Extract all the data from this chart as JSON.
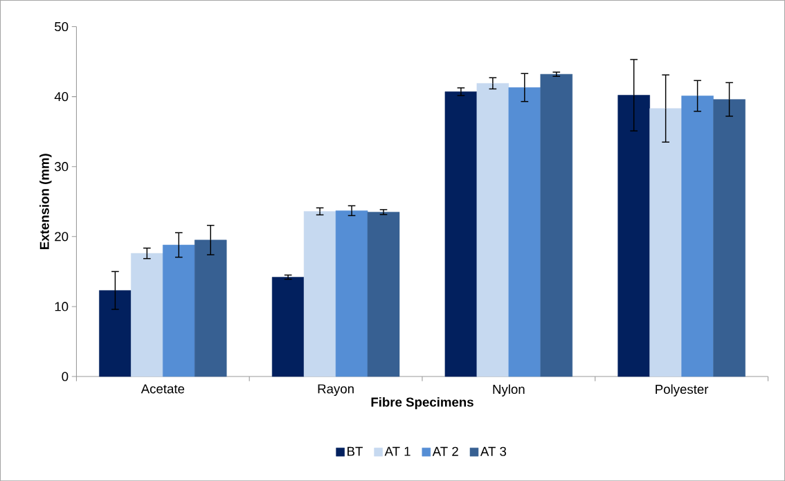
{
  "chart_data": {
    "type": "bar",
    "xlabel": "Fibre Specimens",
    "ylabel": "Extension (mm)",
    "categories": [
      "Acetate",
      "Rayon",
      "Nylon",
      "Polyester"
    ],
    "series": [
      {
        "name": "BT",
        "color": "#02205e",
        "values": [
          12.3,
          14.2,
          40.7,
          40.2
        ],
        "errors": [
          2.7,
          0.3,
          0.55,
          5.1
        ]
      },
      {
        "name": "AT 1",
        "color": "#c6d9f0",
        "values": [
          17.6,
          23.6,
          41.9,
          38.3
        ],
        "errors": [
          0.75,
          0.5,
          0.8,
          4.8
        ]
      },
      {
        "name": "AT 2",
        "color": "#558ed5",
        "values": [
          18.8,
          23.7,
          41.3,
          40.1
        ],
        "errors": [
          1.75,
          0.7,
          2.0,
          2.2
        ]
      },
      {
        "name": "AT 3",
        "color": "#376092",
        "values": [
          19.5,
          23.5,
          43.2,
          39.6
        ],
        "errors": [
          2.1,
          0.35,
          0.3,
          2.4
        ]
      }
    ],
    "ylim": [
      0,
      50
    ],
    "yticks": [
      0,
      10,
      20,
      30,
      40,
      50
    ],
    "grid": false,
    "legend": "bottom"
  }
}
